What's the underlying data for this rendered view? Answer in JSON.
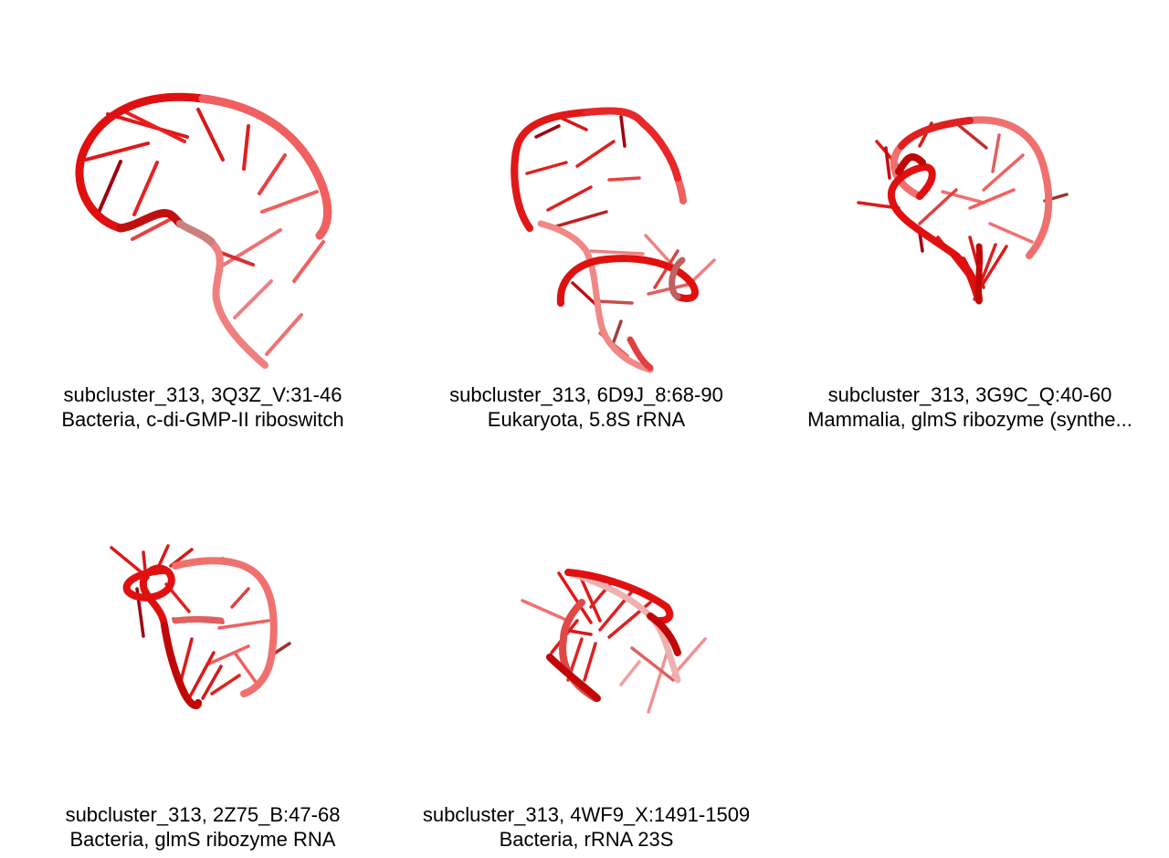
{
  "panels": [
    {
      "line1": "subcluster_313, 3Q3Z_V:31-46",
      "line2": "Bacteria, c-di-GMP-II riboswitch"
    },
    {
      "line1": "subcluster_313, 6D9J_8:68-90",
      "line2": "Eukaryota, 5.8S rRNA"
    },
    {
      "line1": "subcluster_313, 3G9C_Q:40-60",
      "line2": "Mammalia, glmS ribozyme (synthe..."
    },
    {
      "line1": "subcluster_313, 2Z75_B:47-68",
      "line2": "Bacteria, glmS ribozyme RNA"
    },
    {
      "line1": "subcluster_313, 4WF9_X:1491-1509",
      "line2": "Bacteria, rRNA 23S"
    }
  ],
  "colors": {
    "backbone_dark": "#c00000",
    "backbone": "#e81010",
    "backbone_light": "#f08080",
    "base_dark": "#a00010",
    "base": "#e02020",
    "base_light": "#f06060"
  }
}
